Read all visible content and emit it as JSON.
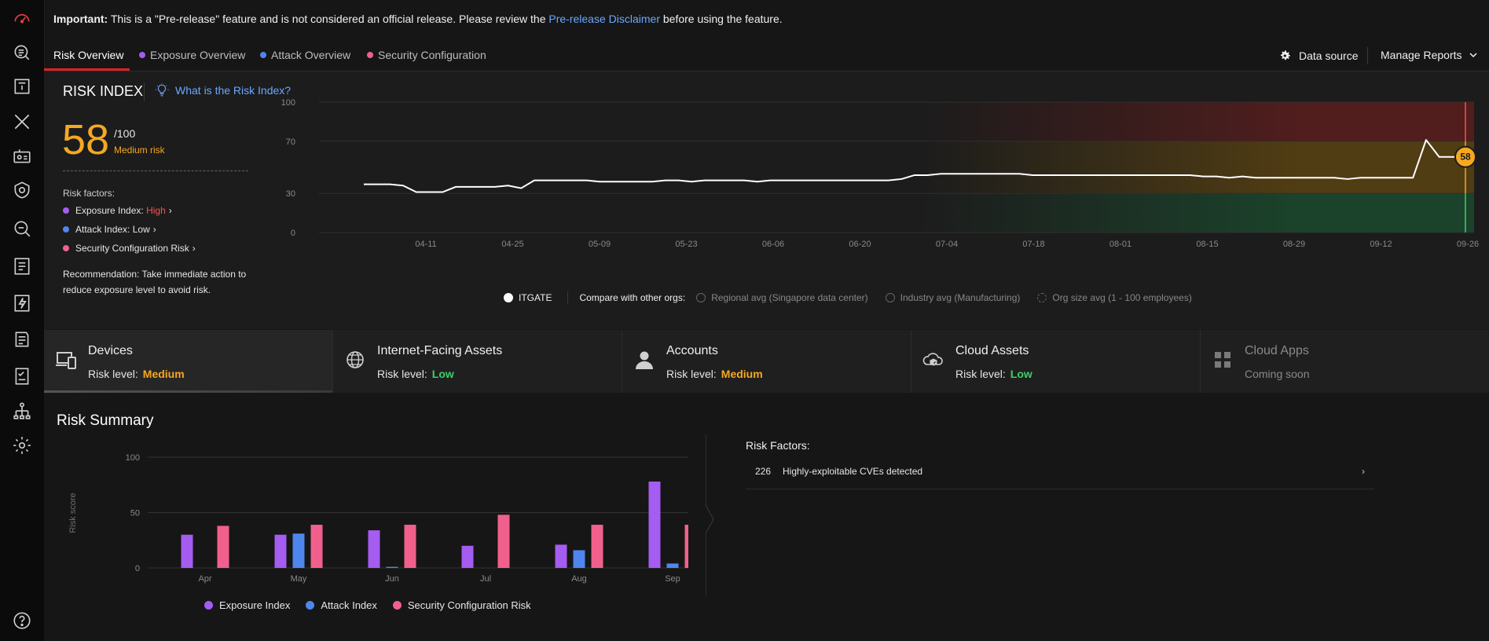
{
  "rail": {
    "icons": [
      "dashboard-icon",
      "search-list-icon",
      "document-alert-icon",
      "xdr-icon",
      "id-card-icon",
      "shield-gear-icon",
      "investigate-icon",
      "report-icon",
      "bolt-icon",
      "playbook-icon",
      "checklist-icon",
      "network-icon",
      "settings-icon",
      "help-icon"
    ]
  },
  "notice": {
    "important": "Important:",
    "text": " This is a \"Pre-release\" feature and is not considered an official release. Please review the ",
    "link": "Pre-release Disclaimer",
    "tail": " before using the feature."
  },
  "tabs": [
    {
      "label": "Risk Overview",
      "active": true,
      "dot_color": ""
    },
    {
      "label": "Exposure Overview",
      "active": false,
      "dot_color": "#a55cf0"
    },
    {
      "label": "Attack Overview",
      "active": false,
      "dot_color": "#4f86ee"
    },
    {
      "label": "Security Configuration",
      "active": false,
      "dot_color": "#f1608c"
    }
  ],
  "toolbar": {
    "data_source_label": "Data source",
    "manage_reports_label": "Manage Reports"
  },
  "risk_index": {
    "title": "RISK INDEX",
    "help_link": "What is the Risk Index?",
    "score": "58",
    "max": "/100",
    "level": "Medium risk",
    "factors_title": "Risk factors:",
    "factors": [
      {
        "label": "Exposure Index:",
        "value": "High",
        "value_color": "#ff4d4f",
        "dot_color": "#a55cf0"
      },
      {
        "label": "Attack Index:",
        "value": "Low",
        "value_color": "#e6e6e6",
        "dot_color": "#4f86ee"
      },
      {
        "label": "Security Configuration Risk",
        "value": "",
        "value_color": "#e6e6e6",
        "dot_color": "#f1608c"
      }
    ],
    "recommendation": "Recommendation: Take immediate action to reduce exposure level to avoid risk."
  },
  "trend_legend": {
    "org": "ITGATE",
    "compare_label": "Compare with other orgs:",
    "options": [
      "Regional avg (Singapore data center)",
      "Industry avg (Manufacturing)",
      "Org size avg (1 - 100 employees)"
    ]
  },
  "cards": [
    {
      "title": "Devices",
      "level_label": "Risk level:",
      "level": "Medium",
      "level_color": "#f6a821",
      "icon": "devices-icon",
      "active": true,
      "disabled": false
    },
    {
      "title": "Internet-Facing Assets",
      "level_label": "Risk level:",
      "level": "Low",
      "level_color": "#3ccf6a",
      "icon": "globe-icon",
      "active": false,
      "disabled": false
    },
    {
      "title": "Accounts",
      "level_label": "Risk level:",
      "level": "Medium",
      "level_color": "#f6a821",
      "icon": "user-icon",
      "active": false,
      "disabled": false
    },
    {
      "title": "Cloud Assets",
      "level_label": "Risk level:",
      "level": "Low",
      "level_color": "#3ccf6a",
      "icon": "cloud-assets-icon",
      "active": false,
      "disabled": false
    },
    {
      "title": "Cloud Apps",
      "level_label": "Coming soon",
      "level": "",
      "level_color": "#8a8a8a",
      "icon": "apps-grid-icon",
      "active": false,
      "disabled": true
    }
  ],
  "summary": {
    "title": "Risk Summary",
    "risk_factors_title": "Risk Factors:",
    "risk_factor_rows": [
      {
        "count": "226",
        "text": "Highly-exploitable CVEs detected"
      }
    ]
  },
  "chart_data": [
    {
      "type": "line",
      "title": "",
      "x_ticks": [
        "04-11",
        "04-25",
        "05-09",
        "05-23",
        "06-06",
        "06-20",
        "07-04",
        "07-18",
        "08-01",
        "08-15",
        "08-29",
        "09-12",
        "09-26"
      ],
      "y_ticks": [
        0,
        30,
        70,
        100
      ],
      "ylim": [
        0,
        100
      ],
      "risk_bands": [
        {
          "name": "low",
          "from": 0,
          "to": 30,
          "color": "#1b4a2e"
        },
        {
          "name": "medium",
          "from": 30,
          "to": 70,
          "color": "#5a4312"
        },
        {
          "name": "high",
          "from": 70,
          "to": 100,
          "color": "#5a1d1d"
        }
      ],
      "series": [
        {
          "name": "ITGATE",
          "values": [
            37,
            37,
            37,
            36,
            31,
            31,
            31,
            35,
            35,
            35,
            35,
            36,
            34,
            40,
            40,
            40,
            40,
            40,
            39,
            39,
            39,
            39,
            39,
            40,
            40,
            39,
            40,
            40,
            40,
            40,
            39,
            40,
            40,
            40,
            40,
            40,
            40,
            40,
            40,
            40,
            40,
            41,
            44,
            44,
            45,
            45,
            45,
            45,
            45,
            45,
            45,
            44,
            44,
            44,
            44,
            44,
            44,
            44,
            44,
            44,
            44,
            44,
            44,
            44,
            43,
            43,
            42,
            43,
            42,
            42,
            42,
            42,
            42,
            42,
            42,
            41,
            42,
            42,
            42,
            42,
            42,
            71,
            58,
            58,
            58
          ]
        }
      ],
      "current_value": 58
    },
    {
      "type": "bar",
      "title": "",
      "ylabel": "Risk score",
      "categories": [
        "Apr",
        "May",
        "Jun",
        "Jul",
        "Aug",
        "Sep"
      ],
      "ylim": [
        0,
        100
      ],
      "y_ticks": [
        0,
        50,
        100
      ],
      "series": [
        {
          "name": "Exposure Index",
          "color": "#a55cf0",
          "values": [
            30,
            30,
            34,
            20,
            21,
            78
          ]
        },
        {
          "name": "Attack Index",
          "color": "#4f86ee",
          "values": [
            0,
            31,
            1,
            0,
            16,
            4
          ]
        },
        {
          "name": "Security Configuration Risk",
          "color": "#f1608c",
          "values": [
            38,
            39,
            39,
            48,
            39,
            39
          ]
        }
      ]
    }
  ]
}
